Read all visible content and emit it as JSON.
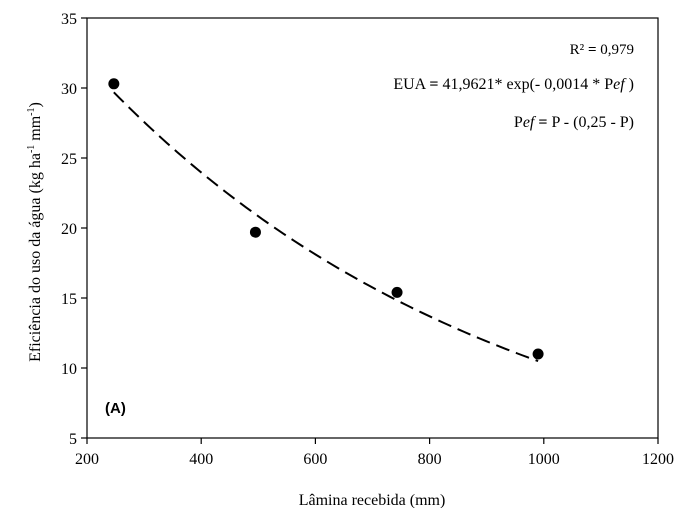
{
  "chart_data": {
    "type": "scatter",
    "xlabel": "Lâmina recebida (mm)",
    "ylabel_main": "Eficiência do uso da água (kg ha",
    "ylabel_sup1": "-1",
    "ylabel_mid": " mm",
    "ylabel_sup2": "-1",
    "ylabel_end": ")",
    "xlim": [
      200,
      1200
    ],
    "ylim": [
      5,
      35
    ],
    "xticks": [
      200,
      400,
      600,
      800,
      1000,
      1200
    ],
    "yticks": [
      5,
      10,
      15,
      20,
      25,
      30,
      35
    ],
    "grid": false,
    "points": [
      {
        "x": 247,
        "y": 30.3
      },
      {
        "x": 495,
        "y": 19.7
      },
      {
        "x": 743,
        "y": 15.4
      },
      {
        "x": 990,
        "y": 11.0
      }
    ],
    "fit": {
      "a": 41.9621,
      "b": -0.0014,
      "x_range": [
        247,
        990
      ],
      "style": "dashed"
    },
    "annotations": {
      "r2_prefix": "R² ",
      "r2_eq": "= ",
      "r2_value": "0,979",
      "eq_left": "EUA ",
      "eq_eq": "= ",
      "eq_right_1": "41,9621* exp(- 0,0014 * P",
      "eq_ef_1": "ef",
      "eq_right_2": " )",
      "pef_p": "P",
      "pef_ef": "ef",
      "pef_eq": " = ",
      "pef_right": "P - (0,25 - P)",
      "panel_label": "(A)"
    },
    "colors": {
      "marker": "#000000",
      "line": "#000000"
    }
  }
}
